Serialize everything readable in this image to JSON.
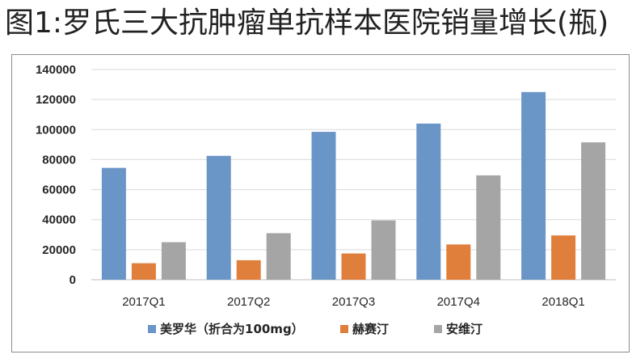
{
  "title": "图1:罗氏三大抗肿瘤单抗样本医院销量增长(瓶)",
  "chart_data": {
    "type": "bar",
    "title": "图1:罗氏三大抗肿瘤单抗样本医院销量增长(瓶)",
    "xlabel": "",
    "ylabel": "",
    "categories": [
      "2017Q1",
      "2017Q2",
      "2017Q3",
      "2017Q4",
      "2018Q1"
    ],
    "series": [
      {
        "name": "美罗华（折合为100mg）",
        "color": "#6a95c7",
        "values": [
          74500,
          82500,
          98500,
          104000,
          125000
        ]
      },
      {
        "name": "赫赛汀",
        "color": "#e07f3c",
        "values": [
          11000,
          13000,
          17500,
          23500,
          29500
        ]
      },
      {
        "name": "安维汀",
        "color": "#a5a5a5",
        "values": [
          25000,
          31000,
          39500,
          69500,
          91500
        ]
      }
    ],
    "ylim": [
      0,
      140000
    ],
    "yticks": [
      0,
      20000,
      40000,
      60000,
      80000,
      100000,
      120000,
      140000
    ],
    "grid": true,
    "legend": "bottom"
  }
}
